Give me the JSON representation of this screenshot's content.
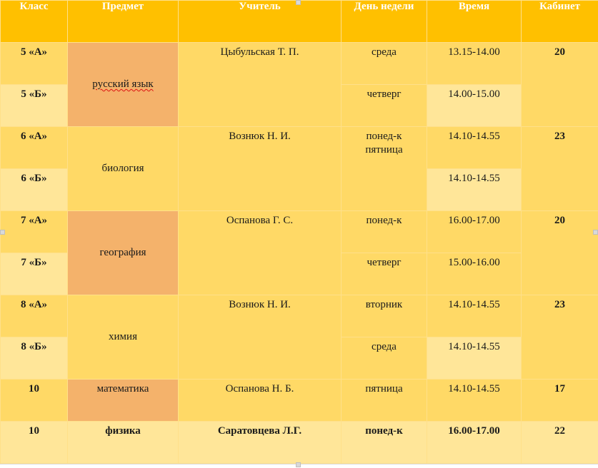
{
  "headers": {
    "class": "Класс",
    "subject": "Предмет",
    "teacher": "Учитель",
    "day": "День недели",
    "time": "Время",
    "room": "Кабинет"
  },
  "rows": [
    {
      "class": "5 «А»",
      "subject": "русский язык",
      "teacher": "Цыбульская Т. П.",
      "day": "среда",
      "time": "13.15-14.00",
      "room": "20"
    },
    {
      "class": "5 «Б»",
      "day": "четверг",
      "time": "14.00-15.00"
    },
    {
      "class": "6 «А»",
      "subject": "биология",
      "teacher": "Вознюк Н. И.",
      "day": "понед-к\nпятница",
      "time": "14.10-14.55",
      "room": "23"
    },
    {
      "class": "6 «Б»",
      "time": "14.10-14.55"
    },
    {
      "class": "7 «А»",
      "subject": "география",
      "teacher": "Оспанова Г. С.",
      "day": "понед-к",
      "time": "16.00-17.00",
      "room": "20"
    },
    {
      "class": "7 «Б»",
      "day": "четверг",
      "time": "15.00-16.00"
    },
    {
      "class": "8 «А»",
      "subject": "химия",
      "teacher": "Вознюк Н. И.",
      "day": "вторник",
      "time": "14.10-14.55",
      "room": "23"
    },
    {
      "class": "8 «Б»",
      "day": "среда",
      "time": "14.10-14.55"
    },
    {
      "class": "10",
      "subject": "математика",
      "teacher": "Оспанова Н. Б.",
      "day": "пятница",
      "time": "14.10-14.55",
      "room": "17"
    },
    {
      "class": "10",
      "subject": "физика",
      "teacher": "Саратовцева Л.Г.",
      "day": "понед-к",
      "time": "16.00-17.00",
      "room": "22"
    }
  ],
  "colors": {
    "header": "#ffc000",
    "row_dark": "#ffd966",
    "row_light": "#ffe699",
    "subject_highlight": "#f4b26b"
  }
}
